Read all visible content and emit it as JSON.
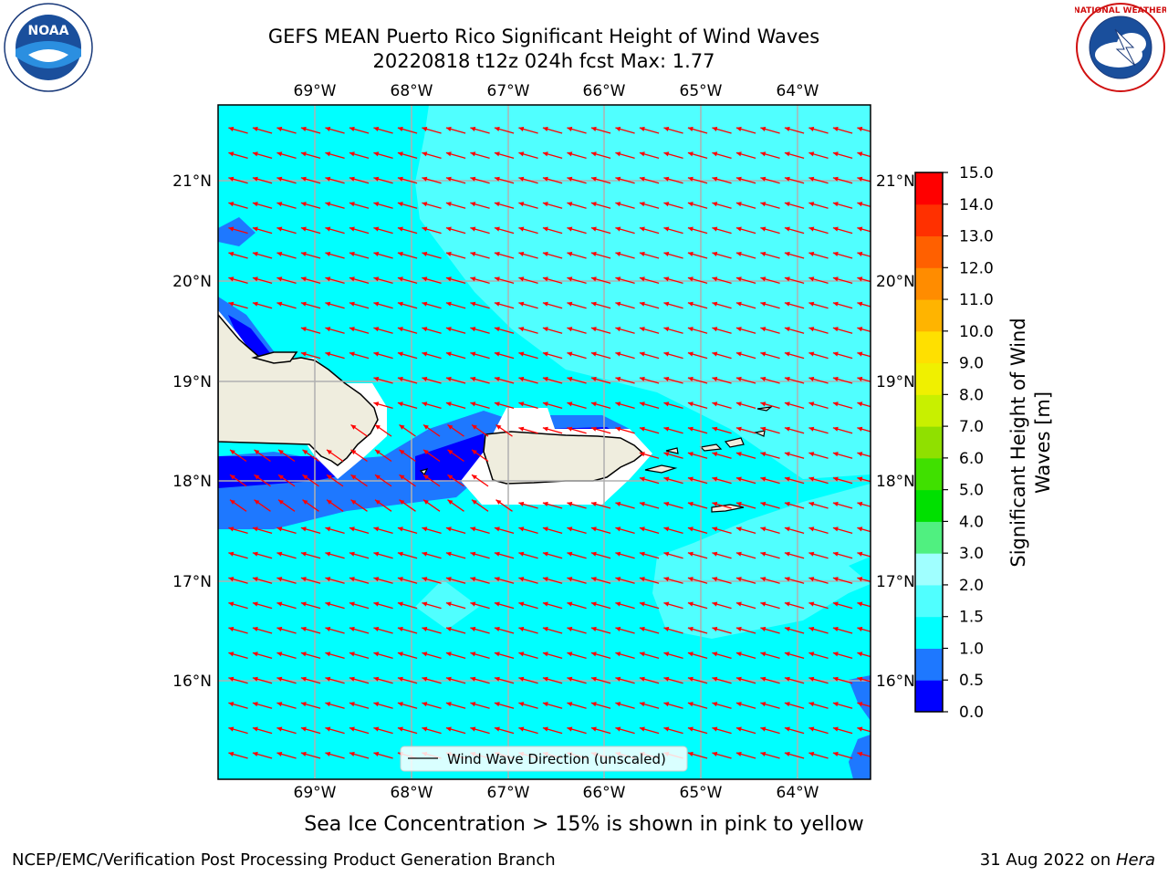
{
  "header": {
    "title_line1": "GEFS MEAN Puerto Rico Significant Height of Wind Waves",
    "title_line2": "20220818 t12z 024h fcst   Max: 1.77"
  },
  "logos": {
    "left_name": "NOAA",
    "right_name": "NATIONAL WEATHER SERVICE"
  },
  "map": {
    "lon_labels": [
      "69°W",
      "68°W",
      "67°W",
      "66°W",
      "65°W",
      "64°W"
    ],
    "lat_labels": [
      "21°N",
      "20°N",
      "19°N",
      "18°N",
      "17°N",
      "16°N"
    ],
    "legend_label": "Wind Wave Direction (unscaled)",
    "arrow_color": "#ff0000"
  },
  "colorbar": {
    "label_line1": "Significant Height of Wind",
    "label_line2": "Waves [m]",
    "ticks": [
      "0.0",
      "0.5",
      "1.0",
      "1.5",
      "2.0",
      "3.0",
      "4.0",
      "5.0",
      "6.0",
      "7.0",
      "8.0",
      "9.0",
      "10.0",
      "11.0",
      "12.0",
      "13.0",
      "14.0",
      "15.0"
    ],
    "colors": [
      "#0000ff",
      "#1e78ff",
      "#00ffff",
      "#50ffff",
      "#a0ffff",
      "#50f080",
      "#00e000",
      "#40e000",
      "#90e000",
      "#c8f000",
      "#f0f000",
      "#ffe000",
      "#ffb400",
      "#ff8c00",
      "#ff6000",
      "#ff3000",
      "#ff0000"
    ]
  },
  "caption": "Sea Ice Concentration > 15% is shown in pink to yellow",
  "footer": {
    "left": "NCEP/EMC/Verification Post Processing Product Generation Branch",
    "right_prefix": "31 Aug 2022 on ",
    "right_host": "Hera"
  }
}
